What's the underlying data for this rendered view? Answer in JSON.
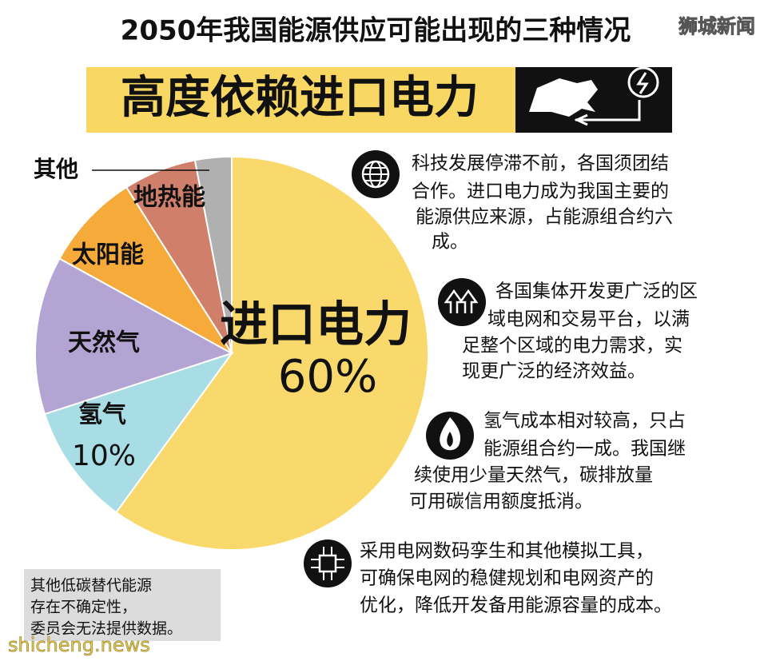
{
  "header": {
    "title": "2050年我国能源供应可能出现的三种情况",
    "banner": "高度依赖进口电力",
    "watermark": "狮城新闻"
  },
  "chart_data": {
    "type": "pie",
    "categories": [
      "进口电力",
      "氢气",
      "天然气",
      "太阳能",
      "地热能",
      "其他"
    ],
    "values": [
      60,
      10,
      13,
      8,
      6,
      3
    ],
    "value_labels": [
      "60%",
      "10%",
      null,
      null,
      null,
      null
    ],
    "colors": [
      "#f9d96b",
      "#a8dde6",
      "#b3a4d4",
      "#f5aa3a",
      "#d0806a",
      "#b0b0b0"
    ]
  },
  "notes": [
    [
      "科技发展停滞不前，各国须团结",
      "合作。进口电力成为我国主要的",
      "能源供应来源，占能源组合约六",
      "成。"
    ],
    [
      "各国集体开发更广泛的区",
      "域电网和交易平台，以满",
      "足整个区域的电力需求，实",
      "现更广泛的经济效益。"
    ],
    [
      "氢气成本相对较高，只占",
      "能源组合约一成。我国继",
      "续使用少量天然气，碳排放量",
      "可用碳信用额度抵消。"
    ],
    [
      "采用电网数码孪生和其他模拟工具，",
      "可确保电网的稳健规划和电网资产的",
      "优化，降低开发备用能源容量的成本。"
    ]
  ],
  "footnote": [
    "其他低碳替代能源",
    "存在不确定性，",
    "委员会无法提供数据。"
  ],
  "site": "shicheng.news"
}
